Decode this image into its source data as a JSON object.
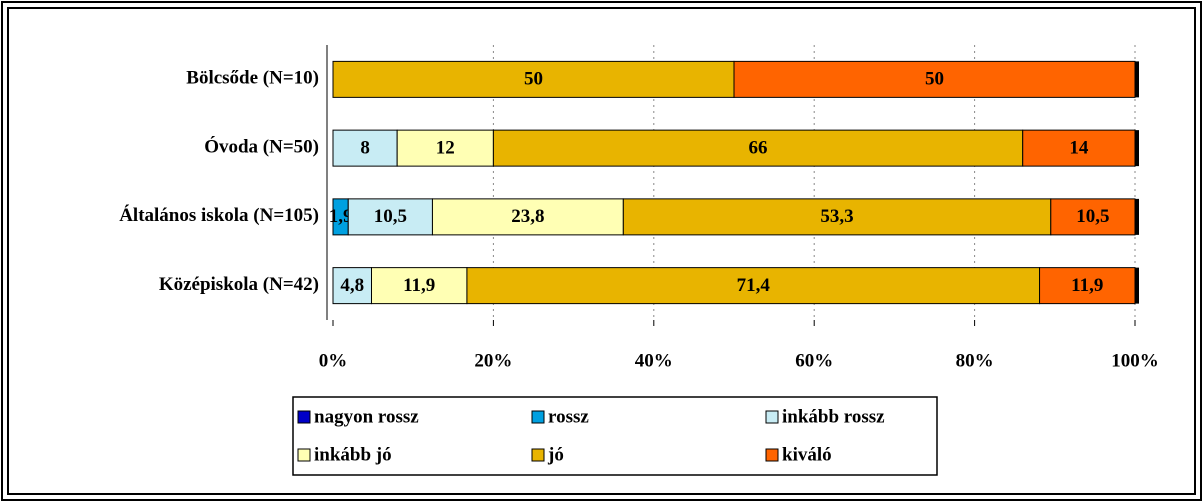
{
  "chart_data": {
    "type": "stacked-bar-horizontal",
    "categories": [
      "Bölcsőde (N=10)",
      "Óvoda (N=50)",
      "Általános iskola (N=105)",
      "Középiskola (N=42)"
    ],
    "series": [
      {
        "name": "nagyon rossz",
        "color": "#0000c8",
        "values": [
          null,
          null,
          null,
          null
        ],
        "value_labels": [
          null,
          null,
          null,
          null
        ]
      },
      {
        "name": "rossz",
        "color": "#00a0e0",
        "values": [
          null,
          null,
          1.9,
          null
        ],
        "value_labels": [
          null,
          null,
          "1,9",
          null
        ]
      },
      {
        "name": "inkább rossz",
        "color": "#c8ecf4",
        "values": [
          null,
          8,
          10.5,
          4.8
        ],
        "value_labels": [
          null,
          "8",
          "10,5",
          "4,8"
        ]
      },
      {
        "name": "inkább jó",
        "color": "#ffffb4",
        "values": [
          null,
          12,
          23.8,
          11.9
        ],
        "value_labels": [
          null,
          "12",
          "23,8",
          "11,9"
        ]
      },
      {
        "name": "jó",
        "color": "#e8b400",
        "values": [
          50,
          66,
          53.3,
          71.4
        ],
        "value_labels": [
          "50",
          "66",
          "53,3",
          "71,4"
        ]
      },
      {
        "name": "kiváló",
        "color": "#ff6400",
        "values": [
          50,
          14,
          10.5,
          11.9
        ],
        "value_labels": [
          "50",
          "14",
          "10,5",
          "11,9"
        ]
      }
    ],
    "xlim": [
      0,
      100
    ],
    "xticks": [
      {
        "value": 0,
        "label": "0%"
      },
      {
        "value": 20,
        "label": "20%"
      },
      {
        "value": 40,
        "label": "40%"
      },
      {
        "value": 60,
        "label": "60%"
      },
      {
        "value": 80,
        "label": "80%"
      },
      {
        "value": 100,
        "label": "100%"
      }
    ],
    "grid": true
  }
}
